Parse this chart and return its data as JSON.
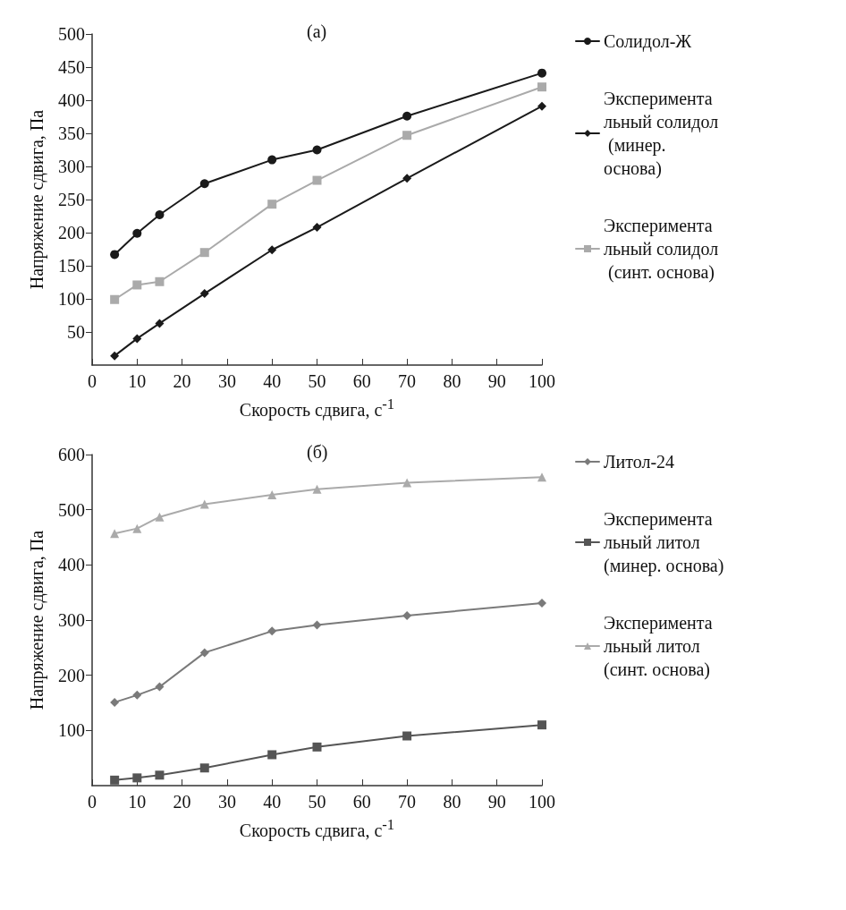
{
  "chart_data": [
    {
      "type": "line",
      "title": "(а)",
      "xlabel": "Скорость сдвига, с$^{-1}$",
      "ylabel": "Напряжение сдвига, Па",
      "xlim": [
        0,
        100
      ],
      "xticks": [
        0,
        10,
        20,
        30,
        40,
        50,
        60,
        70,
        80,
        90,
        100
      ],
      "ylim": [
        0,
        500
      ],
      "yticks": [
        50,
        100,
        150,
        200,
        250,
        300,
        350,
        400,
        450,
        500
      ],
      "grid": false,
      "legend": "right",
      "line_style": "solid",
      "series": [
        {
          "name": "Солидол-Ж",
          "color": "#1a1a1a",
          "marker": "circle",
          "x": [
            5,
            10,
            15,
            25,
            40,
            50,
            70,
            100
          ],
          "values": [
            167,
            199,
            227,
            274,
            310,
            325,
            376,
            441
          ]
        },
        {
          "name": "Экспериментальный солидол (минер. основа)",
          "color": "#1a1a1a",
          "marker": "diamond",
          "x": [
            5,
            10,
            15,
            25,
            40,
            50,
            70,
            100
          ],
          "values": [
            14,
            40,
            63,
            108,
            174,
            208,
            282,
            391
          ]
        },
        {
          "name": "Экспериментальный солидол (синт. основа)",
          "color": "#aaaaaa",
          "marker": "square",
          "x": [
            5,
            10,
            15,
            25,
            40,
            50,
            70,
            100
          ],
          "values": [
            99,
            121,
            126,
            170,
            243,
            279,
            347,
            420
          ]
        }
      ]
    },
    {
      "type": "line",
      "title": "(б)",
      "xlabel": "Скорость сдвига, с$^{-1}$",
      "ylabel": "Напряжение сдвига, Па",
      "xlim": [
        0,
        100
      ],
      "xticks": [
        0,
        10,
        20,
        30,
        40,
        50,
        60,
        70,
        80,
        90,
        100
      ],
      "ylim": [
        0,
        600
      ],
      "yticks": [
        100,
        200,
        300,
        400,
        500,
        600
      ],
      "grid": false,
      "legend": "right",
      "line_style": "solid",
      "series": [
        {
          "name": "Литол-24",
          "color": "#7a7a7a",
          "marker": "diamond",
          "x": [
            5,
            10,
            15,
            25,
            40,
            50,
            70,
            100
          ],
          "values": [
            151,
            164,
            179,
            241,
            280,
            291,
            308,
            331
          ]
        },
        {
          "name": "Экспериментальный литол (минер. основа)",
          "color": "#555555",
          "marker": "square",
          "x": [
            5,
            10,
            15,
            25,
            40,
            50,
            70,
            100
          ],
          "values": [
            10,
            14,
            19,
            32,
            56,
            70,
            90,
            110
          ]
        },
        {
          "name": "Экспериментальный литол (синт. основа)",
          "color": "#aaaaaa",
          "marker": "triangle",
          "x": [
            5,
            10,
            15,
            25,
            40,
            50,
            70,
            100
          ],
          "values": [
            457,
            466,
            487,
            510,
            527,
            537,
            549,
            559
          ]
        }
      ]
    }
  ]
}
